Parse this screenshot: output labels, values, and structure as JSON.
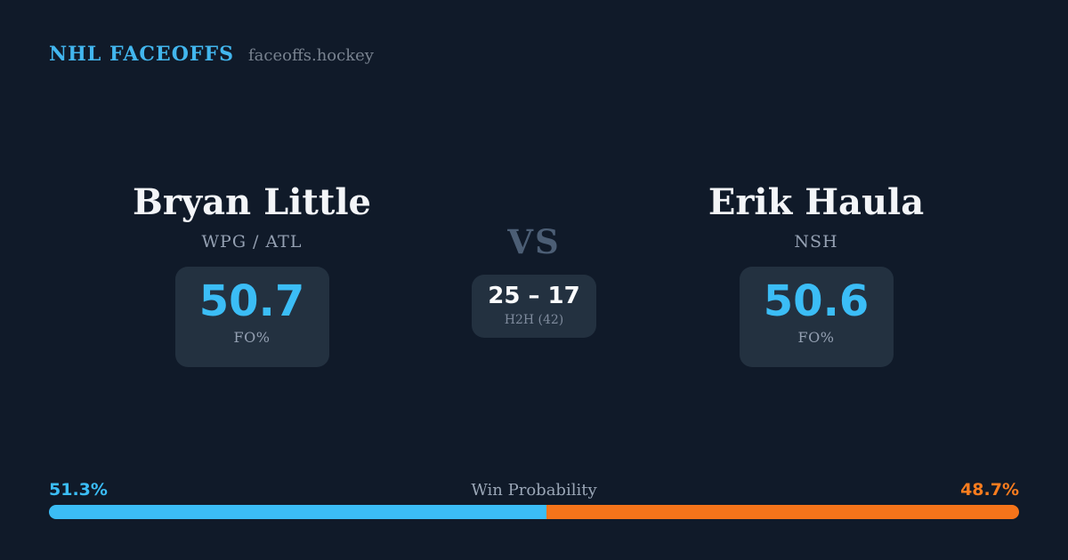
{
  "header": {
    "brand": "NHL FACEOFFS",
    "site": "faceoffs.hockey"
  },
  "matchup": {
    "vs_label": "VS",
    "h2h": {
      "score": "25 – 17",
      "label": "H2H (42)"
    },
    "players": [
      {
        "name": "Bryan Little",
        "team": "WPG / ATL",
        "stat_value": "50.7",
        "stat_label": "FO%"
      },
      {
        "name": "Erik Haula",
        "team": "NSH",
        "stat_value": "50.6",
        "stat_label": "FO%"
      }
    ]
  },
  "win_probability": {
    "title": "Win Probability",
    "left_pct": 51.3,
    "right_pct": 48.7,
    "left_pct_label": "51.3%",
    "right_pct_label": "48.7%"
  },
  "colors": {
    "background": "#101a29",
    "card": "#233140",
    "accent_blue": "#3bbdf6",
    "accent_orange": "#f97316",
    "muted_text": "#94a0b2",
    "vs_text": "#4c5e75"
  },
  "chart_data": {
    "type": "bar",
    "title": "Win Probability",
    "categories": [
      "Bryan Little",
      "Erik Haula"
    ],
    "values": [
      51.3,
      48.7
    ],
    "unit": "%",
    "colors": [
      "#3bbdf6",
      "#f97316"
    ],
    "legend_position": "none",
    "related_stats": {
      "faceoff_pct": [
        50.7,
        50.6
      ],
      "h2h_wins": [
        25,
        17
      ],
      "h2h_total": 42
    }
  }
}
